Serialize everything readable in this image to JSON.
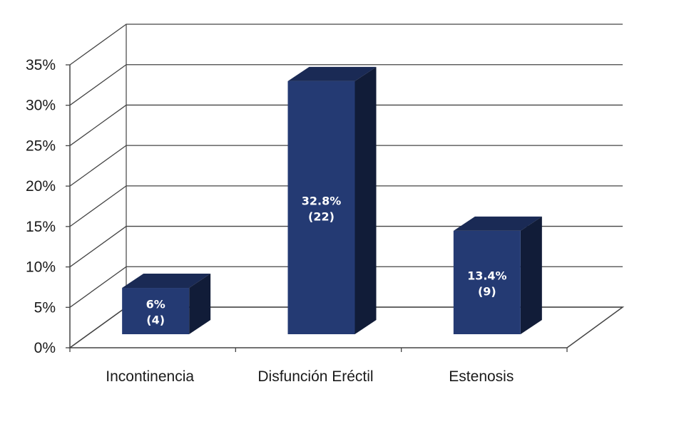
{
  "chart_data": {
    "type": "bar",
    "style": "3d",
    "categories": [
      "Incontinencia",
      "Disfunción Eréctil",
      "Estenosis"
    ],
    "values": [
      6,
      32.8,
      13.4
    ],
    "value_labels": [
      "6%",
      "32.8%",
      "13.4%"
    ],
    "count_labels": [
      "(4)",
      "(22)",
      "(9)"
    ],
    "ylim": [
      0,
      35
    ],
    "yticks": [
      "0%",
      "5%",
      "10%",
      "15%",
      "20%",
      "25%",
      "30%",
      "35%"
    ],
    "grid": true,
    "legend": "none",
    "colors": {
      "front": "#243a73",
      "top": "#1a2a55",
      "side": "#111c38",
      "grid": "#444444",
      "text": "#1a1a1a"
    }
  }
}
